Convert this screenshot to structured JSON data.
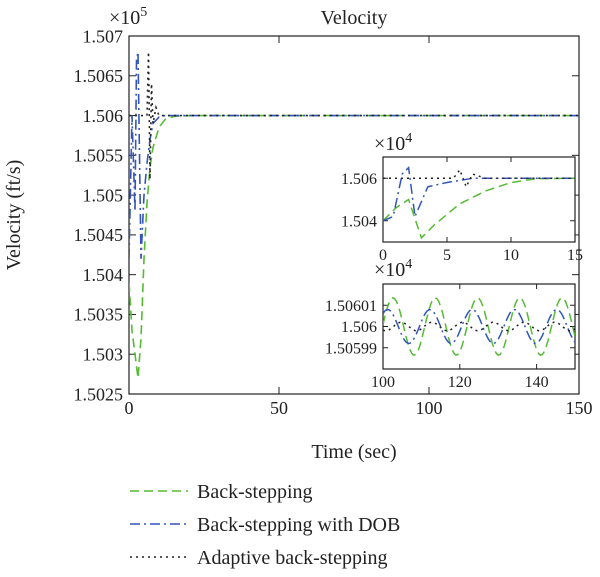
{
  "chart_data": {
    "type": "line",
    "title": "Velocity",
    "xlabel": "Time (sec)",
    "ylabel": "Velocity (ft/s)",
    "exponent_label": "×10",
    "exponent": "5",
    "xlim": [
      0,
      150
    ],
    "ylim": [
      150250,
      150700
    ],
    "x_ticks": [
      0,
      50,
      100,
      150
    ],
    "x_tick_labels": [
      "0",
      "50",
      "100",
      "150"
    ],
    "y_ticks": [
      150250,
      150300,
      150350,
      150400,
      150450,
      150500,
      150550,
      150600,
      150650,
      150700
    ],
    "y_tick_labels": [
      "1.5025",
      "1.503",
      "1.5035",
      "1.504",
      "1.5045",
      "1.505",
      "1.5055",
      "1.506",
      "1.5065",
      "1.507"
    ],
    "series": [
      {
        "name": "Back-stepping",
        "color": "#55bb33",
        "dash": "dashed",
        "x": [
          0,
          1,
          2,
          3,
          4,
          5,
          6,
          7,
          8,
          10,
          12,
          15,
          20,
          30,
          50,
          80,
          100,
          120,
          150
        ],
        "y": [
          150390,
          150330,
          150300,
          150270,
          150320,
          150420,
          150490,
          150535,
          150560,
          150585,
          150595,
          150599,
          150600,
          150600,
          150600,
          150600,
          150600,
          150600,
          150600
        ]
      },
      {
        "name": "Back-stepping with DOB",
        "color": "#3355bb",
        "dash": "dashdot",
        "x": [
          0,
          1,
          2,
          2.5,
          3,
          4,
          5,
          6,
          7,
          8,
          10,
          12,
          15,
          20,
          50,
          100,
          150
        ],
        "y": [
          150420,
          150600,
          150480,
          150670,
          150680,
          150420,
          150500,
          150540,
          150570,
          150590,
          150598,
          150600,
          150600,
          150600,
          150600,
          150600,
          150600
        ]
      },
      {
        "name": "Adaptive back-stepping",
        "color": "#222222",
        "dash": "dotted",
        "x": [
          0,
          1,
          2,
          3,
          4,
          5,
          6,
          6.5,
          7,
          7.5,
          8,
          9,
          10,
          12,
          15,
          20,
          50,
          100,
          150
        ],
        "y": [
          150600,
          150600,
          150600,
          150600,
          150600,
          150600,
          150600,
          150680,
          150520,
          150640,
          150590,
          150610,
          150600,
          150600,
          150600,
          150600,
          150600,
          150600,
          150600
        ]
      }
    ],
    "inset_top": {
      "exponent_label": "×10",
      "exponent": "4",
      "xlim": [
        0,
        15
      ],
      "ylim": [
        150300,
        150700
      ],
      "x_ticks": [
        0,
        5,
        10,
        15
      ],
      "x_tick_labels": [
        "0",
        "5",
        "10",
        "15"
      ],
      "y_ticks": [
        150400,
        150600
      ],
      "y_tick_labels": [
        "1.504",
        "1.506"
      ],
      "series": [
        {
          "x": [
            0,
            1,
            2,
            3,
            4,
            6,
            8,
            10,
            12,
            15
          ],
          "y": [
            150400,
            150460,
            150500,
            150320,
            150380,
            150480,
            150540,
            150580,
            150598,
            150600
          ]
        },
        {
          "x": [
            0,
            0.8,
            1.5,
            2,
            2.5,
            3.5,
            5,
            7,
            10,
            15
          ],
          "y": [
            150400,
            150420,
            150620,
            150650,
            150420,
            150560,
            150580,
            150600,
            150600,
            150600
          ]
        },
        {
          "x": [
            0,
            2,
            4,
            5.5,
            6,
            6.5,
            7,
            8,
            10,
            15
          ],
          "y": [
            150600,
            150600,
            150600,
            150600,
            150640,
            150560,
            150620,
            150600,
            150600,
            150600
          ]
        }
      ]
    },
    "inset_bottom": {
      "exponent_label": "×10",
      "exponent": "4",
      "xlim": [
        100,
        150
      ],
      "ylim": [
        150598,
        150602
      ],
      "x_ticks": [
        100,
        120,
        140
      ],
      "x_tick_labels": [
        "100",
        "120",
        "140"
      ],
      "y_ticks": [
        150599,
        150600,
        150601
      ],
      "y_tick_labels": [
        "1.50599",
        "1.506",
        "1.50601"
      ],
      "series": [
        {
          "amp": 1.35,
          "period": 11,
          "phase": -0.5,
          "offset": 150600
        },
        {
          "amp": 0.8,
          "period": 11,
          "phase": 0.3,
          "offset": 150600
        },
        {
          "amp": 0.2,
          "period": 8,
          "phase": 1.0,
          "offset": 150600
        }
      ]
    }
  }
}
